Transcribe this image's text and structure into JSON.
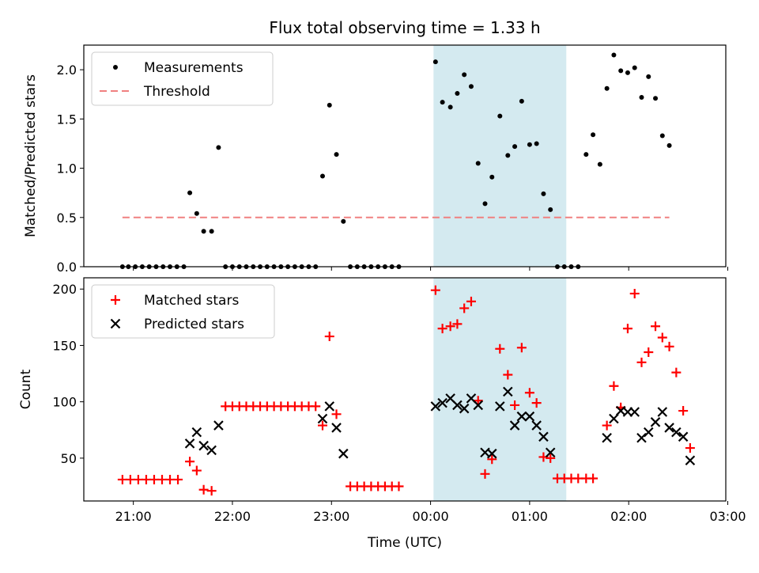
{
  "title": "Flux total observing time = 1.33 h",
  "chart_data": [
    {
      "type": "scatter",
      "ylabel": "Matched/Predicted stars",
      "xlim": [
        -3.5,
        2.98
      ],
      "ylim": [
        0,
        2.25
      ],
      "yticks": [
        0.0,
        0.5,
        1.0,
        1.5,
        2.0
      ],
      "ytick_labels": [
        "0.0",
        "0.5",
        "1.0",
        "1.5",
        "2.0"
      ],
      "shaded_region": {
        "x_start": 0.03,
        "x_end": 1.37,
        "color": "#d4eaf0"
      },
      "legend": {
        "placement": "upper-left",
        "entries": [
          "Measurements",
          "Threshold"
        ]
      },
      "series": [
        {
          "name": "Measurements",
          "marker": "dot",
          "color": "#000000",
          "points": [
            [
              -3.11,
              0
            ],
            [
              -3.05,
              0
            ],
            [
              -2.98,
              0
            ],
            [
              -2.91,
              0
            ],
            [
              -2.84,
              0
            ],
            [
              -2.77,
              0
            ],
            [
              -2.7,
              0
            ],
            [
              -2.63,
              0
            ],
            [
              -2.56,
              0
            ],
            [
              -2.49,
              0
            ],
            [
              -2.43,
              0.75
            ],
            [
              -2.36,
              0.54
            ],
            [
              -2.29,
              0.36
            ],
            [
              -2.21,
              0.36
            ],
            [
              -2.14,
              1.21
            ],
            [
              -2.07,
              0
            ],
            [
              -2.0,
              0
            ],
            [
              -1.93,
              0
            ],
            [
              -1.86,
              0
            ],
            [
              -1.79,
              0
            ],
            [
              -1.72,
              0
            ],
            [
              -1.65,
              0
            ],
            [
              -1.58,
              0
            ],
            [
              -1.51,
              0
            ],
            [
              -1.44,
              0
            ],
            [
              -1.37,
              0
            ],
            [
              -1.3,
              0
            ],
            [
              -1.23,
              0
            ],
            [
              -1.16,
              0
            ],
            [
              -1.09,
              0.92
            ],
            [
              -1.02,
              1.64
            ],
            [
              -0.95,
              1.14
            ],
            [
              -0.88,
              0.46
            ],
            [
              -0.81,
              0
            ],
            [
              -0.74,
              0
            ],
            [
              -0.67,
              0
            ],
            [
              -0.6,
              0
            ],
            [
              -0.53,
              0
            ],
            [
              -0.46,
              0
            ],
            [
              -0.39,
              0
            ],
            [
              -0.32,
              0
            ],
            [
              0.05,
              2.08
            ],
            [
              0.12,
              1.67
            ],
            [
              0.2,
              1.62
            ],
            [
              0.27,
              1.76
            ],
            [
              0.34,
              1.95
            ],
            [
              0.41,
              1.83
            ],
            [
              0.48,
              1.05
            ],
            [
              0.55,
              0.64
            ],
            [
              0.62,
              0.91
            ],
            [
              0.7,
              1.53
            ],
            [
              0.78,
              1.13
            ],
            [
              0.85,
              1.22
            ],
            [
              0.92,
              1.68
            ],
            [
              1.0,
              1.24
            ],
            [
              1.07,
              1.25
            ],
            [
              1.14,
              0.74
            ],
            [
              1.21,
              0.58
            ],
            [
              1.28,
              0
            ],
            [
              1.35,
              0
            ],
            [
              1.42,
              0
            ],
            [
              1.49,
              0
            ],
            [
              1.57,
              1.14
            ],
            [
              1.64,
              1.34
            ],
            [
              1.71,
              1.04
            ],
            [
              1.78,
              1.81
            ],
            [
              1.85,
              2.15
            ],
            [
              1.92,
              1.99
            ],
            [
              1.99,
              1.97
            ],
            [
              2.06,
              2.02
            ],
            [
              2.13,
              1.72
            ],
            [
              2.2,
              1.93
            ],
            [
              2.27,
              1.71
            ],
            [
              2.34,
              1.33
            ],
            [
              2.41,
              1.23
            ]
          ]
        },
        {
          "name": "Threshold",
          "style": "dashed",
          "color": "#f08080",
          "x": [
            -3.11,
            2.41
          ],
          "y": [
            0.5,
            0.5
          ]
        }
      ]
    },
    {
      "type": "scatter",
      "xlabel": "Time (UTC)",
      "ylabel": "Count",
      "xlim": [
        -3.5,
        2.98
      ],
      "ylim": [
        12,
        210
      ],
      "yticks": [
        50,
        100,
        150,
        200
      ],
      "ytick_labels": [
        "50",
        "100",
        "150",
        "200"
      ],
      "xticks": [
        -3,
        -2,
        -1,
        0,
        1,
        2,
        3
      ],
      "xtick_labels": [
        "21:00",
        "22:00",
        "23:00",
        "00:00",
        "01:00",
        "02:00",
        "03:00"
      ],
      "shaded_region": {
        "x_start": 0.03,
        "x_end": 1.37,
        "color": "#d4eaf0"
      },
      "legend": {
        "placement": "upper-left",
        "entries": [
          "Matched stars",
          "Predicted stars"
        ]
      },
      "series": [
        {
          "name": "Matched stars",
          "marker": "plus",
          "color": "#ff0000",
          "points": [
            [
              -3.11,
              31
            ],
            [
              -3.03,
              31
            ],
            [
              -2.95,
              31
            ],
            [
              -2.87,
              31
            ],
            [
              -2.79,
              31
            ],
            [
              -2.71,
              31
            ],
            [
              -2.63,
              31
            ],
            [
              -2.55,
              31
            ],
            [
              -2.43,
              47
            ],
            [
              -2.36,
              39
            ],
            [
              -2.29,
              22
            ],
            [
              -2.21,
              21
            ],
            [
              -2.07,
              96
            ],
            [
              -2.0,
              96
            ],
            [
              -1.93,
              96
            ],
            [
              -1.86,
              96
            ],
            [
              -1.79,
              96
            ],
            [
              -1.72,
              96
            ],
            [
              -1.65,
              96
            ],
            [
              -1.58,
              96
            ],
            [
              -1.51,
              96
            ],
            [
              -1.44,
              96
            ],
            [
              -1.37,
              96
            ],
            [
              -1.3,
              96
            ],
            [
              -1.23,
              96
            ],
            [
              -1.16,
              96
            ],
            [
              -1.09,
              79
            ],
            [
              -1.02,
              158
            ],
            [
              -0.95,
              89
            ],
            [
              -0.81,
              25
            ],
            [
              -0.74,
              25
            ],
            [
              -0.67,
              25
            ],
            [
              -0.6,
              25
            ],
            [
              -0.53,
              25
            ],
            [
              -0.46,
              25
            ],
            [
              -0.39,
              25
            ],
            [
              -0.32,
              25
            ],
            [
              0.05,
              199
            ],
            [
              0.12,
              165
            ],
            [
              0.2,
              167
            ],
            [
              0.27,
              169
            ],
            [
              0.34,
              183
            ],
            [
              0.41,
              189
            ],
            [
              0.48,
              101
            ],
            [
              0.55,
              36
            ],
            [
              0.62,
              49
            ],
            [
              0.7,
              147
            ],
            [
              0.78,
              124
            ],
            [
              0.85,
              97
            ],
            [
              0.92,
              148
            ],
            [
              1.0,
              108
            ],
            [
              1.07,
              99
            ],
            [
              1.14,
              51
            ],
            [
              1.21,
              50
            ],
            [
              1.28,
              32
            ],
            [
              1.35,
              32
            ],
            [
              1.42,
              32
            ],
            [
              1.49,
              32
            ],
            [
              1.57,
              32
            ],
            [
              1.64,
              32
            ],
            [
              1.78,
              79
            ],
            [
              1.85,
              114
            ],
            [
              1.92,
              95
            ],
            [
              1.99,
              165
            ],
            [
              2.06,
              196
            ],
            [
              2.13,
              135
            ],
            [
              2.2,
              144
            ],
            [
              2.27,
              167
            ],
            [
              2.34,
              157
            ],
            [
              2.41,
              149
            ],
            [
              2.48,
              126
            ],
            [
              2.55,
              92
            ],
            [
              2.62,
              59
            ]
          ]
        },
        {
          "name": "Predicted stars",
          "marker": "x",
          "color": "#000000",
          "points": [
            [
              -2.43,
              63
            ],
            [
              -2.36,
              73
            ],
            [
              -2.29,
              61
            ],
            [
              -2.21,
              57
            ],
            [
              -2.14,
              79
            ],
            [
              -1.09,
              85
            ],
            [
              -1.02,
              96
            ],
            [
              -0.95,
              77
            ],
            [
              -0.88,
              54
            ],
            [
              0.05,
              96
            ],
            [
              0.12,
              99
            ],
            [
              0.2,
              103
            ],
            [
              0.27,
              97
            ],
            [
              0.34,
              94
            ],
            [
              0.41,
              103
            ],
            [
              0.48,
              97
            ],
            [
              0.55,
              55
            ],
            [
              0.62,
              54
            ],
            [
              0.7,
              96
            ],
            [
              0.78,
              109
            ],
            [
              0.85,
              79
            ],
            [
              0.92,
              87
            ],
            [
              1.0,
              87
            ],
            [
              1.07,
              79
            ],
            [
              1.14,
              69
            ],
            [
              1.21,
              55
            ],
            [
              1.78,
              68
            ],
            [
              1.85,
              85
            ],
            [
              1.92,
              92
            ],
            [
              1.99,
              91
            ],
            [
              2.06,
              91
            ],
            [
              2.13,
              68
            ],
            [
              2.2,
              73
            ],
            [
              2.27,
              82
            ],
            [
              2.34,
              91
            ],
            [
              2.41,
              77
            ],
            [
              2.48,
              73
            ],
            [
              2.55,
              69
            ],
            [
              2.62,
              48
            ]
          ]
        }
      ]
    }
  ]
}
